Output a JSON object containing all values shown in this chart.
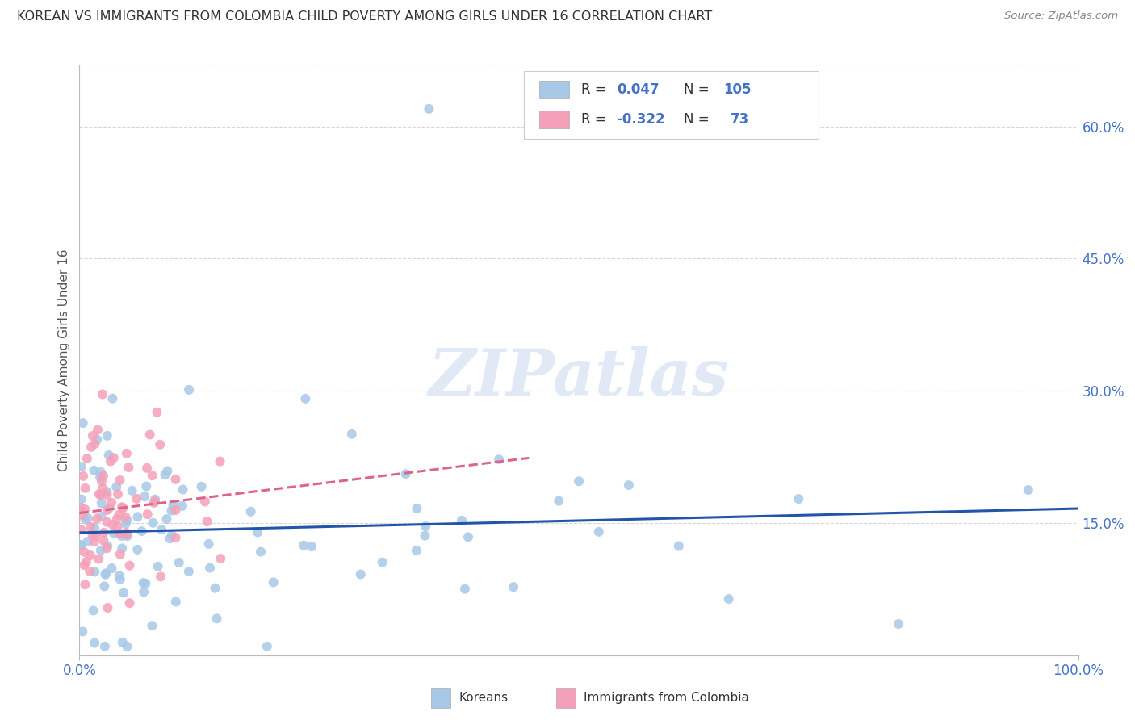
{
  "title": "KOREAN VS IMMIGRANTS FROM COLOMBIA CHILD POVERTY AMONG GIRLS UNDER 16 CORRELATION CHART",
  "source": "Source: ZipAtlas.com",
  "ylabel": "Child Poverty Among Girls Under 16",
  "xlim": [
    0,
    1.0
  ],
  "ylim": [
    0,
    0.67
  ],
  "xtick_labels": [
    "0.0%",
    "100.0%"
  ],
  "ytick_positions": [
    0.15,
    0.3,
    0.45,
    0.6
  ],
  "ytick_labels": [
    "15.0%",
    "30.0%",
    "45.0%",
    "60.0%"
  ],
  "korean_R": 0.047,
  "korean_N": 105,
  "colombia_R": -0.322,
  "colombia_N": 73,
  "korean_color": "#a8c8e8",
  "colombia_color": "#f4a0b8",
  "korean_line_color": "#2255aa",
  "colombia_line_color": "#dd6688",
  "legend_korean_label": "Koreans",
  "legend_colombia_label": "Immigrants from Colombia",
  "watermark_text": "ZIPatlas",
  "background_color": "#ffffff",
  "grid_color": "#cccccc",
  "title_color": "#333333",
  "source_color": "#888888",
  "axis_label_color": "#555555",
  "blue_color": "#4472c4",
  "legend_text_color": "#333333"
}
